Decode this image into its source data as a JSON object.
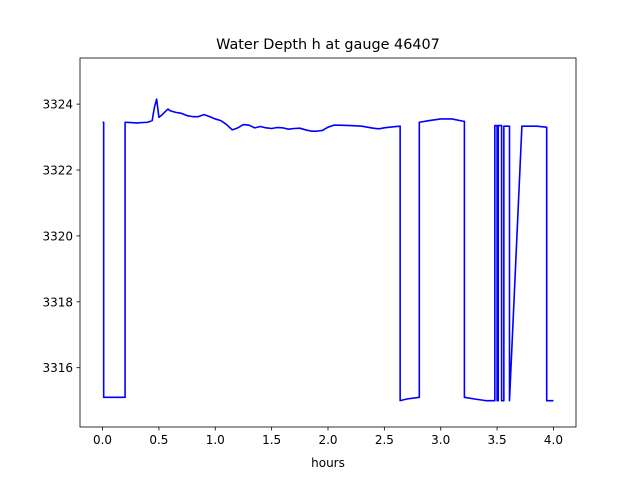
{
  "chart_data": {
    "type": "line",
    "title": "Water Depth h at gauge 46407",
    "xlabel": "hours",
    "ylabel": "",
    "xlim": [
      -0.2,
      4.2
    ],
    "ylim": [
      3314.2,
      3325.4
    ],
    "xticks": [
      0.0,
      0.5,
      1.0,
      1.5,
      2.0,
      2.5,
      3.0,
      3.5,
      4.0
    ],
    "xtick_labels": [
      "0.0",
      "0.5",
      "1.0",
      "1.5",
      "2.0",
      "2.5",
      "3.0",
      "3.5",
      "4.0"
    ],
    "yticks": [
      3316,
      3318,
      3320,
      3322,
      3324
    ],
    "ytick_labels": [
      "3316",
      "3318",
      "3320",
      "3322",
      "3324"
    ],
    "grid": false,
    "series": [
      {
        "color": "#0000ff",
        "x": [
          0.0,
          0.01,
          0.01,
          0.2,
          0.2,
          0.3,
          0.4,
          0.44,
          0.46,
          0.48,
          0.5,
          0.52,
          0.55,
          0.58,
          0.6,
          0.65,
          0.7,
          0.75,
          0.8,
          0.85,
          0.9,
          0.95,
          1.0,
          1.05,
          1.1,
          1.15,
          1.2,
          1.25,
          1.3,
          1.35,
          1.4,
          1.45,
          1.5,
          1.55,
          1.6,
          1.65,
          1.7,
          1.75,
          1.8,
          1.85,
          1.9,
          1.95,
          2.0,
          2.05,
          2.1,
          2.2,
          2.3,
          2.4,
          2.45,
          2.5,
          2.6,
          2.64,
          2.64,
          2.7,
          2.81,
          2.81,
          2.9,
          3.0,
          3.1,
          3.2,
          3.21,
          3.21,
          3.3,
          3.4,
          3.48,
          3.48,
          3.5,
          3.5,
          3.51,
          3.51,
          3.54,
          3.54,
          3.56,
          3.56,
          3.61,
          3.61,
          3.72,
          3.85,
          3.94,
          3.94,
          4.0
        ],
        "y": [
          3323.45,
          3323.45,
          3315.1,
          3315.1,
          3323.45,
          3323.43,
          3323.45,
          3323.5,
          3323.9,
          3324.15,
          3323.6,
          3323.65,
          3323.75,
          3323.85,
          3323.8,
          3323.75,
          3323.72,
          3323.65,
          3323.62,
          3323.62,
          3323.68,
          3323.62,
          3323.55,
          3323.5,
          3323.38,
          3323.22,
          3323.28,
          3323.38,
          3323.36,
          3323.28,
          3323.32,
          3323.28,
          3323.26,
          3323.29,
          3323.28,
          3323.24,
          3323.26,
          3323.27,
          3323.22,
          3323.18,
          3323.18,
          3323.2,
          3323.3,
          3323.36,
          3323.36,
          3323.35,
          3323.33,
          3323.27,
          3323.25,
          3323.28,
          3323.32,
          3323.33,
          3315.0,
          3315.05,
          3315.1,
          3323.45,
          3323.5,
          3323.55,
          3323.55,
          3323.48,
          3323.48,
          3315.1,
          3315.05,
          3315.0,
          3315.0,
          3323.35,
          3323.35,
          3315.0,
          3315.0,
          3323.35,
          3323.35,
          3315.0,
          3315.0,
          3323.33,
          3323.33,
          3315.0,
          3323.33,
          3323.33,
          3323.3,
          3315.0,
          3315.0
        ]
      }
    ]
  }
}
